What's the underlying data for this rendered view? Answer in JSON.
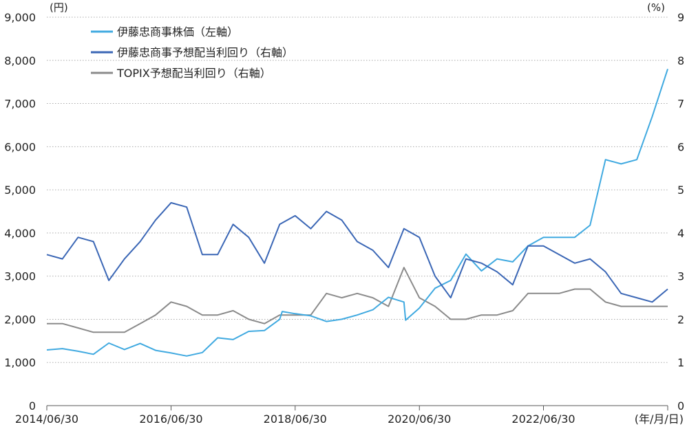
{
  "colors": {
    "stock": "#3fa9e0",
    "yield": "#3a66b5",
    "topix": "#8a8a8a",
    "grid": "#aaaaaa",
    "axis": "#555555"
  },
  "chart_data": {
    "type": "line",
    "title": "",
    "y_left_unit": "(円)",
    "y_right_unit": "(%)",
    "x_unit": "(年/月/日)",
    "xlim": [
      "2014-06-30",
      "2024-06-30"
    ],
    "ylim_left": [
      0,
      9000
    ],
    "ylim_right": [
      0,
      9
    ],
    "x_tick_labels": [
      "2014/06/30",
      "2016/06/30",
      "2018/06/30",
      "2020/06/30",
      "2022/06/30"
    ],
    "x_tick_dates": [
      "2014-06-30",
      "2016-06-30",
      "2018-06-30",
      "2020-06-30",
      "2022-06-30"
    ],
    "y_left_ticks": [
      "0",
      "1,000",
      "2,000",
      "3,000",
      "4,000",
      "5,000",
      "6,000",
      "7,000",
      "8,000",
      "9,000"
    ],
    "y_right_ticks": [
      "0",
      "1",
      "2",
      "3",
      "4",
      "5",
      "6",
      "7",
      "8",
      "9"
    ],
    "grid": true,
    "legend_position": "top-left",
    "series": [
      {
        "name": "伊藤忠商事株価（左軸）",
        "axis": "left",
        "color_key": "stock",
        "points": [
          [
            "2014-06-30",
            1290
          ],
          [
            "2014-09-30",
            1320
          ],
          [
            "2014-12-31",
            1260
          ],
          [
            "2015-03-31",
            1190
          ],
          [
            "2015-06-30",
            1450
          ],
          [
            "2015-09-30",
            1300
          ],
          [
            "2015-12-31",
            1440
          ],
          [
            "2016-03-31",
            1280
          ],
          [
            "2016-06-30",
            1220
          ],
          [
            "2016-09-30",
            1150
          ],
          [
            "2016-12-31",
            1230
          ],
          [
            "2017-03-31",
            1570
          ],
          [
            "2017-06-30",
            1530
          ],
          [
            "2017-09-30",
            1720
          ],
          [
            "2017-12-31",
            1740
          ],
          [
            "2018-03-31",
            2000
          ],
          [
            "2018-04-15",
            2180
          ],
          [
            "2018-06-30",
            2130
          ],
          [
            "2018-09-30",
            2080
          ],
          [
            "2018-12-31",
            1950
          ],
          [
            "2019-03-31",
            2000
          ],
          [
            "2019-06-30",
            2100
          ],
          [
            "2019-09-30",
            2220
          ],
          [
            "2019-12-31",
            2510
          ],
          [
            "2020-03-31",
            2400
          ],
          [
            "2020-04-10",
            1980
          ],
          [
            "2020-06-30",
            2260
          ],
          [
            "2020-09-30",
            2720
          ],
          [
            "2020-12-31",
            2900
          ],
          [
            "2021-03-31",
            3510
          ],
          [
            "2021-06-30",
            3120
          ],
          [
            "2021-09-30",
            3400
          ],
          [
            "2021-12-31",
            3330
          ],
          [
            "2022-03-31",
            3700
          ],
          [
            "2022-06-30",
            3900
          ],
          [
            "2022-09-30",
            3900
          ],
          [
            "2022-12-31",
            3900
          ],
          [
            "2023-03-31",
            4180
          ],
          [
            "2023-06-30",
            5700
          ],
          [
            "2023-09-30",
            5600
          ],
          [
            "2023-12-31",
            5700
          ],
          [
            "2024-03-31",
            6700
          ],
          [
            "2024-06-30",
            7800
          ]
        ]
      },
      {
        "name": "伊藤忠商事予想配当利回り（右軸）",
        "axis": "right",
        "color_key": "yield",
        "points": [
          [
            "2014-06-30",
            3.5
          ],
          [
            "2014-09-30",
            3.4
          ],
          [
            "2014-12-31",
            3.9
          ],
          [
            "2015-03-31",
            3.8
          ],
          [
            "2015-06-30",
            2.9
          ],
          [
            "2015-09-30",
            3.4
          ],
          [
            "2015-12-31",
            3.8
          ],
          [
            "2016-03-31",
            4.3
          ],
          [
            "2016-06-30",
            4.7
          ],
          [
            "2016-09-30",
            4.6
          ],
          [
            "2016-12-31",
            3.5
          ],
          [
            "2017-03-31",
            3.5
          ],
          [
            "2017-06-30",
            4.2
          ],
          [
            "2017-09-30",
            3.9
          ],
          [
            "2017-12-31",
            3.3
          ],
          [
            "2018-03-31",
            4.2
          ],
          [
            "2018-06-30",
            4.4
          ],
          [
            "2018-09-30",
            4.1
          ],
          [
            "2018-12-31",
            4.5
          ],
          [
            "2019-03-31",
            4.3
          ],
          [
            "2019-06-30",
            3.8
          ],
          [
            "2019-09-30",
            3.6
          ],
          [
            "2019-12-31",
            3.2
          ],
          [
            "2020-03-31",
            4.1
          ],
          [
            "2020-06-30",
            3.9
          ],
          [
            "2020-09-30",
            3.0
          ],
          [
            "2020-12-31",
            2.5
          ],
          [
            "2021-03-31",
            3.4
          ],
          [
            "2021-06-30",
            3.3
          ],
          [
            "2021-09-30",
            3.1
          ],
          [
            "2021-12-31",
            2.8
          ],
          [
            "2022-03-31",
            3.7
          ],
          [
            "2022-06-30",
            3.7
          ],
          [
            "2022-09-30",
            3.5
          ],
          [
            "2022-12-31",
            3.3
          ],
          [
            "2023-03-31",
            3.4
          ],
          [
            "2023-06-30",
            3.1
          ],
          [
            "2023-09-30",
            2.6
          ],
          [
            "2023-12-31",
            2.5
          ],
          [
            "2024-03-31",
            2.4
          ],
          [
            "2024-06-30",
            2.7
          ]
        ]
      },
      {
        "name": "TOPIX予想配当利回り（右軸）",
        "axis": "right",
        "color_key": "topix",
        "points": [
          [
            "2014-06-30",
            1.9
          ],
          [
            "2014-09-30",
            1.9
          ],
          [
            "2014-12-31",
            1.8
          ],
          [
            "2015-03-31",
            1.7
          ],
          [
            "2015-06-30",
            1.7
          ],
          [
            "2015-09-30",
            1.7
          ],
          [
            "2015-12-31",
            1.9
          ],
          [
            "2016-03-31",
            2.1
          ],
          [
            "2016-06-30",
            2.4
          ],
          [
            "2016-09-30",
            2.3
          ],
          [
            "2016-12-31",
            2.1
          ],
          [
            "2017-03-31",
            2.1
          ],
          [
            "2017-06-30",
            2.2
          ],
          [
            "2017-09-30",
            2.0
          ],
          [
            "2017-12-31",
            1.9
          ],
          [
            "2018-03-31",
            2.1
          ],
          [
            "2018-06-30",
            2.1
          ],
          [
            "2018-09-30",
            2.1
          ],
          [
            "2018-12-31",
            2.6
          ],
          [
            "2019-03-31",
            2.5
          ],
          [
            "2019-06-30",
            2.6
          ],
          [
            "2019-09-30",
            2.5
          ],
          [
            "2019-12-31",
            2.3
          ],
          [
            "2020-03-31",
            3.2
          ],
          [
            "2020-06-30",
            2.5
          ],
          [
            "2020-09-30",
            2.3
          ],
          [
            "2020-12-31",
            2.0
          ],
          [
            "2021-03-31",
            2.0
          ],
          [
            "2021-06-30",
            2.1
          ],
          [
            "2021-09-30",
            2.1
          ],
          [
            "2021-12-31",
            2.2
          ],
          [
            "2022-03-31",
            2.6
          ],
          [
            "2022-06-30",
            2.6
          ],
          [
            "2022-09-30",
            2.6
          ],
          [
            "2022-12-31",
            2.7
          ],
          [
            "2023-03-31",
            2.7
          ],
          [
            "2023-06-30",
            2.4
          ],
          [
            "2023-09-30",
            2.3
          ],
          [
            "2023-12-31",
            2.3
          ],
          [
            "2024-03-31",
            2.3
          ],
          [
            "2024-06-30",
            2.3
          ]
        ]
      }
    ]
  }
}
